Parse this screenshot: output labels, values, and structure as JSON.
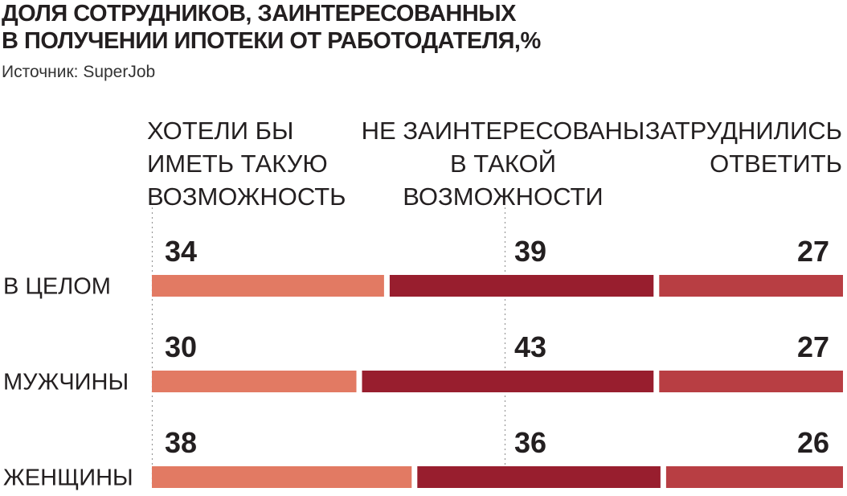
{
  "title_lines": [
    "ДОЛЯ СОТРУДНИКОВ, ЗАИНТЕРЕСОВАННЫХ",
    "В ПОЛУЧЕНИИ ИПОТЕКИ ОТ РАБОТОДАТЕЛЯ,%"
  ],
  "source": "Источник: SuperJob",
  "headers": [
    [
      "ХОТЕЛИ БЫ",
      "ИМЕТЬ ТАКУЮ",
      "ВОЗМОЖНОСТЬ"
    ],
    [
      "НЕ ЗАИНТЕРЕСОВАНЫ",
      "В ТАКОЙ",
      "ВОЗМОЖНОСТИ"
    ],
    [
      "ЗАТРУДНИЛИСЬ",
      "ОТВЕТИТЬ"
    ]
  ],
  "chart_data": {
    "type": "bar",
    "stacked": true,
    "orientation": "horizontal",
    "title": "ДОЛЯ СОТРУДНИКОВ, ЗАИНТЕРЕСОВАННЫХ В ПОЛУЧЕНИИ ИПОТЕКИ ОТ РАБОТОДАТЕЛЯ,%",
    "categories": [
      "В ЦЕЛОМ",
      "МУЖЧИНЫ",
      "ЖЕНЩИНЫ"
    ],
    "series": [
      {
        "name": "ХОТЕЛИ БЫ ИМЕТЬ ТАКУЮ ВОЗМОЖНОСТЬ",
        "values": [
          34,
          30,
          38
        ],
        "color": "#e27a63"
      },
      {
        "name": "НЕ ЗАИНТЕРЕСОВАНЫ В ТАКОЙ ВОЗМОЖНОСТИ",
        "values": [
          39,
          43,
          36
        ],
        "color": "#981e2e"
      },
      {
        "name": "ЗАТРУДНИЛИСЬ ОТВЕТИТЬ",
        "values": [
          27,
          27,
          26
        ],
        "color": "#b83e43"
      }
    ],
    "xlim": [
      0,
      100
    ],
    "grid": false,
    "legend": "top"
  }
}
